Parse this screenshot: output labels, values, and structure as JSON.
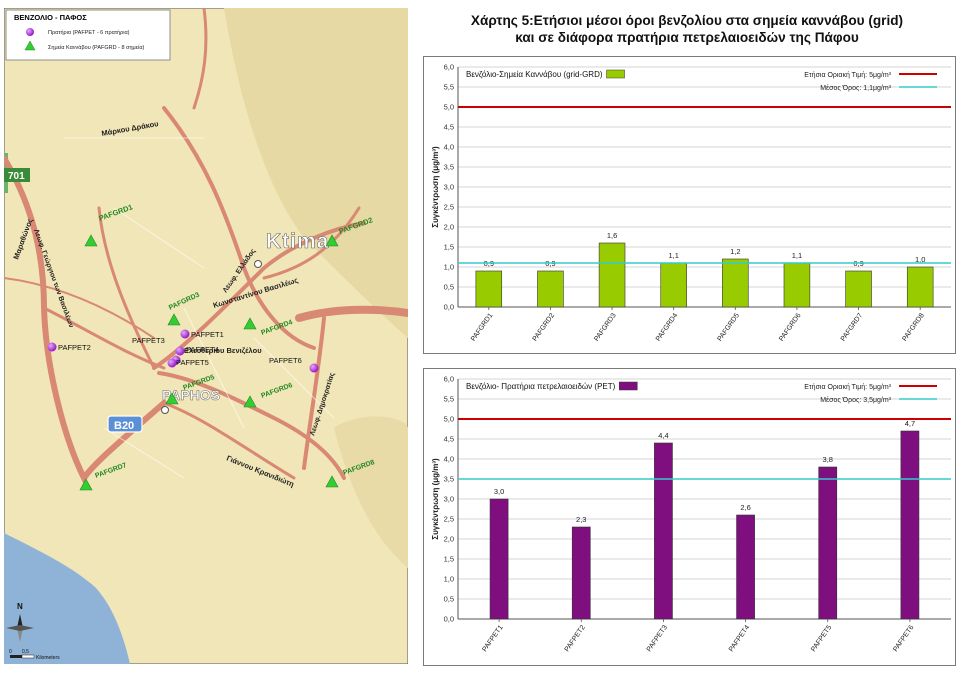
{
  "title_line1": "Χάρτης 5:Ετήσιοι μέσοι όροι βενζολίου στα σημεία καννάβου (grid)",
  "title_line2": "και σε διάφορα πρατήρια πετρελαιοειδών της Πάφου",
  "map": {
    "legend_title": "ΒΕΝΖΟΛΙΟ - ΠΑΦΟΣ",
    "legend_pet": "Πρατήρια (PAFPET - 6 πρατήρια)",
    "legend_grd": "Σημεία Καννάβου (PAFGRD - 8 σημεία)",
    "city_ktima": "Ktima",
    "city_paphos": "PAPHOS",
    "road_701": "701",
    "road_b20": "B20",
    "street_markou": "Μάρκου Δράκου",
    "street_marathonos": "Μαραθώνος",
    "street_georgiou": "Λεωφ. Γεώργιου των Βασιλέων",
    "street_konstantinou": "Κωνσταντίνου Βασιλέως",
    "street_ellados": "Λεωφ. Ελλάδος",
    "street_eleftheriou": "Ελευθερίου Βενιζέλου",
    "street_dimokratias": "Λεωφ. Δημοκρατίας",
    "street_giannou": "Γιάννου Κρανιδιώτη",
    "north": "N",
    "scale_0": "0",
    "scale_05": "0,5",
    "scale_unit": "Kilometers",
    "grd_points": [
      "PAFGRD1",
      "PAFGRD2",
      "PAFGRD3",
      "PAFGRD4",
      "PAFGRD5",
      "PAFGRD6",
      "PAFGRD7",
      "PAFGRD8"
    ],
    "pet_points": [
      "PAFPET1",
      "PAFPET2",
      "PAFPET3",
      "PAFPET4",
      "PAFPET5",
      "PAFPET6"
    ],
    "colors": {
      "pet": "#a020d0",
      "grd": "#33cc33",
      "land": "#f1e6b8",
      "sea": "#8fb3d6",
      "road": "#d98873"
    }
  },
  "chart_data": [
    {
      "type": "bar",
      "series_label": "Βενζόλιο-Σημεία Καννάβου (grid-GRD)",
      "ylabel": "Συγκέντρωση (μg/m³)",
      "ylim": [
        0,
        6
      ],
      "ytick_step": 0.5,
      "categories": [
        "PAFGRD1",
        "PAFGRD2",
        "PAFGRD3",
        "PAFGRD4",
        "PAFGRD5",
        "PAFGRD6",
        "PAFGRD7",
        "PAFGRD8"
      ],
      "values": [
        0.9,
        0.9,
        1.6,
        1.1,
        1.2,
        1.1,
        0.9,
        1.0
      ],
      "data_labels": [
        "0,9",
        "0,9",
        "1,6",
        "1,1",
        "1,2",
        "1,1",
        "0,9",
        "1,0"
      ],
      "bar_color": "#99cc00",
      "limit_value": 5,
      "limit_label": "Ετήσια Οριακή Τιμή: 5μg/m³",
      "limit_color": "#cc0000",
      "mean_value": 1.1,
      "mean_label": "Μέσος Όρος: 1,1μg/m³",
      "mean_color": "#33cccc"
    },
    {
      "type": "bar",
      "series_label": "Βενζόλιο- Πρατήρια πετρελαιοειδών (PET)",
      "ylabel": "Συγκέντρωση (μg/m³)",
      "ylim": [
        0,
        6
      ],
      "ytick_step": 0.5,
      "categories": [
        "PAFPET1",
        "PAFPET2",
        "PAFPET3",
        "PAFPET4",
        "PAFPET5",
        "PAFPET6"
      ],
      "values": [
        3.0,
        2.3,
        4.4,
        2.6,
        3.8,
        4.7
      ],
      "data_labels": [
        "3,0",
        "2,3",
        "4,4",
        "2,6",
        "3,8",
        "4,7"
      ],
      "bar_color": "#7f0f7f",
      "limit_value": 5,
      "limit_label": "Ετήσια Οριακή Τιμή: 5μg/m³",
      "limit_color": "#cc0000",
      "mean_value": 3.5,
      "mean_label": "Μέσος Όρος: 3,5μg/m³",
      "mean_color": "#33cccc"
    }
  ]
}
